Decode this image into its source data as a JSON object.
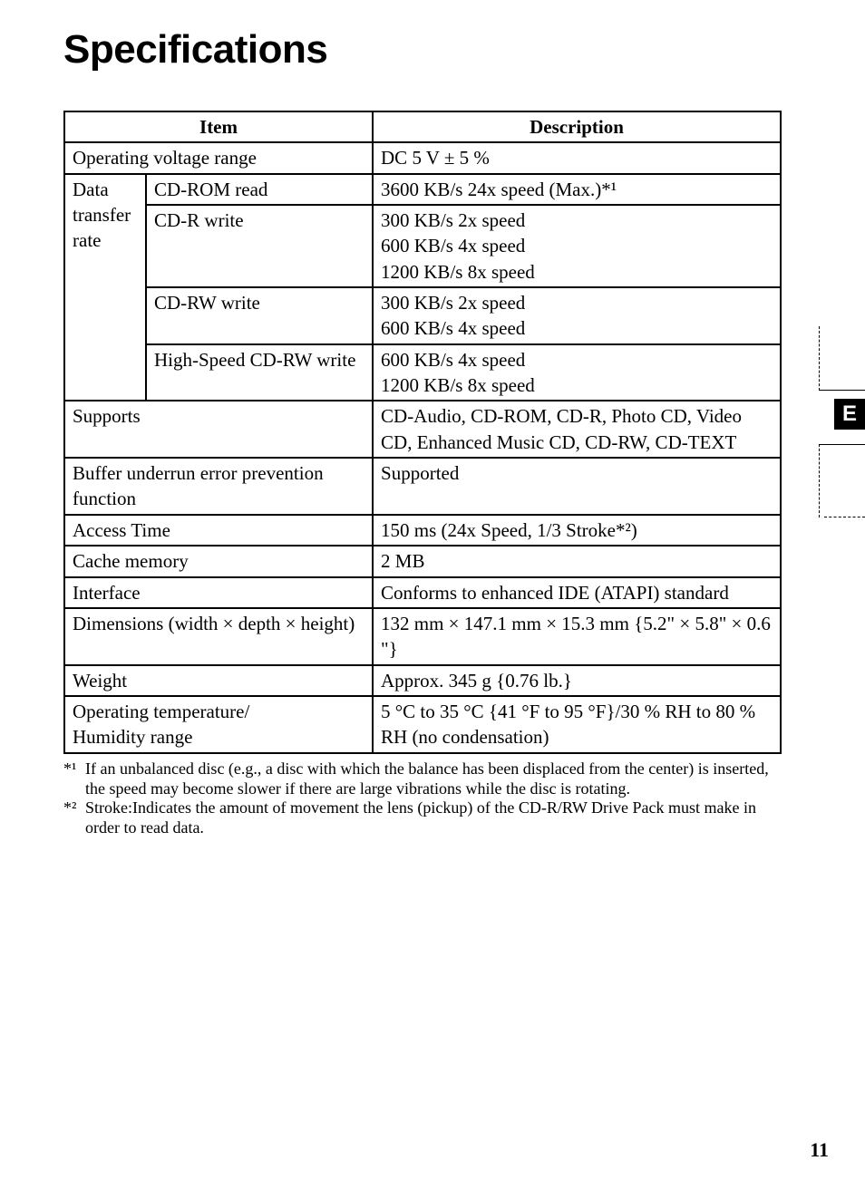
{
  "title": "Specifications",
  "table": {
    "headers": {
      "item": "Item",
      "description": "Description"
    },
    "rows": {
      "voltage": {
        "item": "Operating voltage range",
        "desc": "DC 5 V ± 5 %"
      },
      "dtr_label": "Data transfer rate",
      "cdrom_read": {
        "item": "CD-ROM read",
        "desc": "3600 KB/s 24x speed (Max.)*¹"
      },
      "cdr_write": {
        "item": "CD-R write",
        "desc": "300 KB/s 2x speed\n600 KB/s 4x speed\n1200 KB/s 8x speed"
      },
      "cdrw_write": {
        "item": "CD-RW write",
        "desc": "300 KB/s 2x speed\n600 KB/s 4x speed"
      },
      "hs_cdrw_write": {
        "item": "High-Speed CD-RW write",
        "desc": "600 KB/s 4x speed\n1200 KB/s 8x speed"
      },
      "supports": {
        "item": "Supports",
        "desc": "CD-Audio, CD-ROM, CD-R, Photo CD, Video CD, Enhanced Music CD, CD-RW, CD-TEXT"
      },
      "buffer": {
        "item": "Buffer underrun error prevention function",
        "desc": "Supported"
      },
      "access": {
        "item": "Access Time",
        "desc": "150 ms (24x Speed, 1/3 Stroke*²)"
      },
      "cache": {
        "item": "Cache memory",
        "desc": "2 MB"
      },
      "interface": {
        "item": "Interface",
        "desc": "Conforms to enhanced IDE (ATAPI) standard"
      },
      "dimensions": {
        "item": "Dimensions (width × depth × height)",
        "desc": "132 mm × 147.1 mm × 15.3 mm {5.2\" × 5.8\" × 0.6 \"}"
      },
      "weight": {
        "item": "Weight",
        "desc": "Approx. 345 g {0.76 lb.}"
      },
      "temp": {
        "item": "Operating temperature/\nHumidity range",
        "desc": "5 °C to 35 °C {41 °F to 95 °F}/30 % RH to 80 % RH (no condensation)"
      }
    }
  },
  "footnotes": {
    "n1_marker": "*¹",
    "n1": "If an unbalanced disc (e.g., a disc with which the balance has been displaced from the center) is inserted, the speed may become slower if there are large vibrations while the disc is rotating.",
    "n2_marker": "*²",
    "n2": "Stroke:Indicates the amount of movement the lens (pickup) of the CD-R/RW Drive Pack must make in order to read data."
  },
  "side_tab": "E",
  "page_number": "11",
  "colors": {
    "text": "#000000",
    "background": "#ffffff",
    "tab_bg": "#000000",
    "tab_fg": "#ffffff"
  },
  "typography": {
    "title_font": "Arial",
    "title_size_pt": 33,
    "body_font": "Times New Roman",
    "body_size_pt": 16,
    "footnote_size_pt": 14
  }
}
